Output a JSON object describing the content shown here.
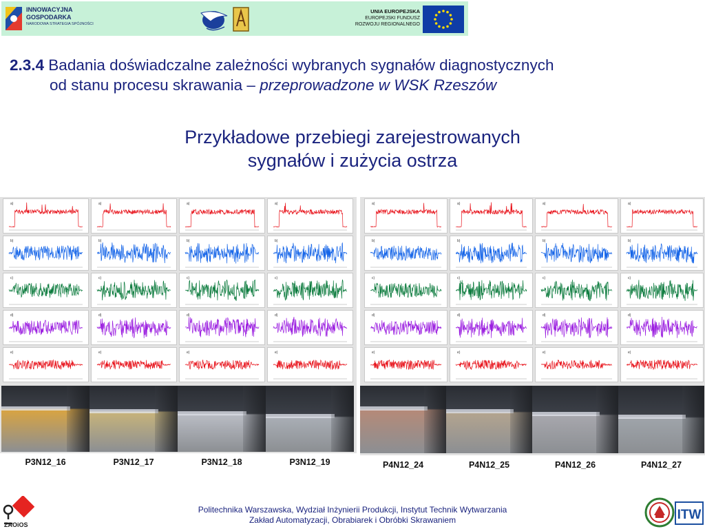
{
  "banner": {
    "program_line1": "INNOWACYJNA",
    "program_line2": "GOSPODARKA",
    "program_line3": "NARODOWA STRATEGIA SPÓJNOŚCI",
    "eu_line1": "UNIA EUROPEJSKA",
    "eu_line2": "EUROPEJSKI FUNDUSZ",
    "eu_line3": "ROZWOJU REGIONALNEGO",
    "bg_color": "#c7f1d8"
  },
  "title": {
    "number": "2.3.4",
    "line1_text": " Badania doświadczalne zależności wybranych sygnałów diagnostycznych",
    "line2_text": "od stanu procesu skrawania – ",
    "line2_italic": "przeprowadzone w WSK Rzeszów"
  },
  "subtitle": {
    "line1": "Przykładowe przebiegi zarejestrowanych",
    "line2": "sygnałów i zużycia ostrza"
  },
  "figure_left": {
    "labels": [
      "a)",
      "b)",
      "c)",
      "d)",
      "e)"
    ],
    "captions": [
      "P3N12_16",
      "P3N12_17",
      "P3N12_18",
      "P3N12_19"
    ]
  },
  "figure_right": {
    "labels": [
      "a)",
      "b)",
      "c)",
      "d)",
      "e)"
    ],
    "captions": [
      "P4N12_24",
      "P4N12_25",
      "P4N12_26",
      "P4N12_27"
    ]
  },
  "signal_colors": [
    "#e8141c",
    "#1464e8",
    "#0a7a3c",
    "#9b1ee0",
    "#e8141c"
  ],
  "footer": {
    "line1": "Politechnika Warszawska, Wydział Inżynierii Produkcji, Instytut Technik Wytwarzania",
    "line2": "Zakład Automatyzacji, Obrabiarek i Obróbki Skrawaniem",
    "zaoios_logo_text": "ZAOiOS",
    "itw_logo_text": "ITW"
  }
}
